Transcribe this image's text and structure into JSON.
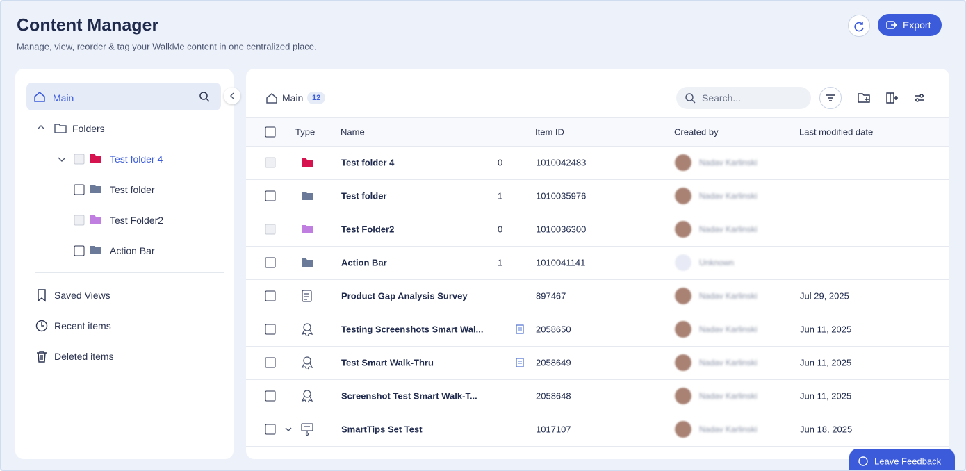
{
  "header": {
    "title": "Content Manager",
    "subtitle": "Manage, view, reorder & tag your WalkMe content in one centralized place.",
    "export": "Export"
  },
  "sidebar": {
    "main": "Main",
    "folders": "Folders",
    "tree": [
      "Test folder 4",
      "Test folder",
      "Test Folder2",
      "Action Bar"
    ],
    "links": [
      "Saved Views",
      "Recent items",
      "Deleted items"
    ]
  },
  "content": {
    "breadcrumb": "Main",
    "count": 12,
    "search_placeholder": "Search...",
    "columns": [
      "Type",
      "Name",
      "Item ID",
      "Created by",
      "Last modified date"
    ],
    "rows": [
      {
        "name": "Test folder 4",
        "count": 0,
        "id": 1010042483,
        "creator": "Nadav Karlinski"
      },
      {
        "name": "Test folder",
        "count": 1,
        "id": 1010035976,
        "creator": "Nadav Karlinski"
      },
      {
        "name": "Test Folder2",
        "count": 0,
        "id": 1010036300,
        "creator": "Nadav Karlinski"
      },
      {
        "name": "Action Bar",
        "count": 1,
        "id": 1010041141,
        "creator": "Unknown"
      },
      {
        "name": "Product Gap Analysis Survey",
        "id": 897467,
        "creator": "Nadav Karlinski",
        "date": "Jul 29, 2025"
      },
      {
        "name": "Testing Screenshots Smart Wal...",
        "id": 2058650,
        "creator": "Nadav Karlinski",
        "date": "Jun 11, 2025"
      },
      {
        "name": "Test Smart Walk-Thru",
        "id": 2058649,
        "creator": "Nadav Karlinski",
        "date": "Jun 11, 2025"
      },
      {
        "name": "Screenshot Test Smart Walk-T...",
        "id": 2058648,
        "creator": "Nadav Karlinski",
        "date": "Jun 11, 2025"
      },
      {
        "name": "SmartTips Set Test",
        "id": 1017107,
        "creator": "Nadav Karlinski",
        "date": "Jun 18, 2025"
      }
    ]
  },
  "feedback": "Leave Feedback"
}
